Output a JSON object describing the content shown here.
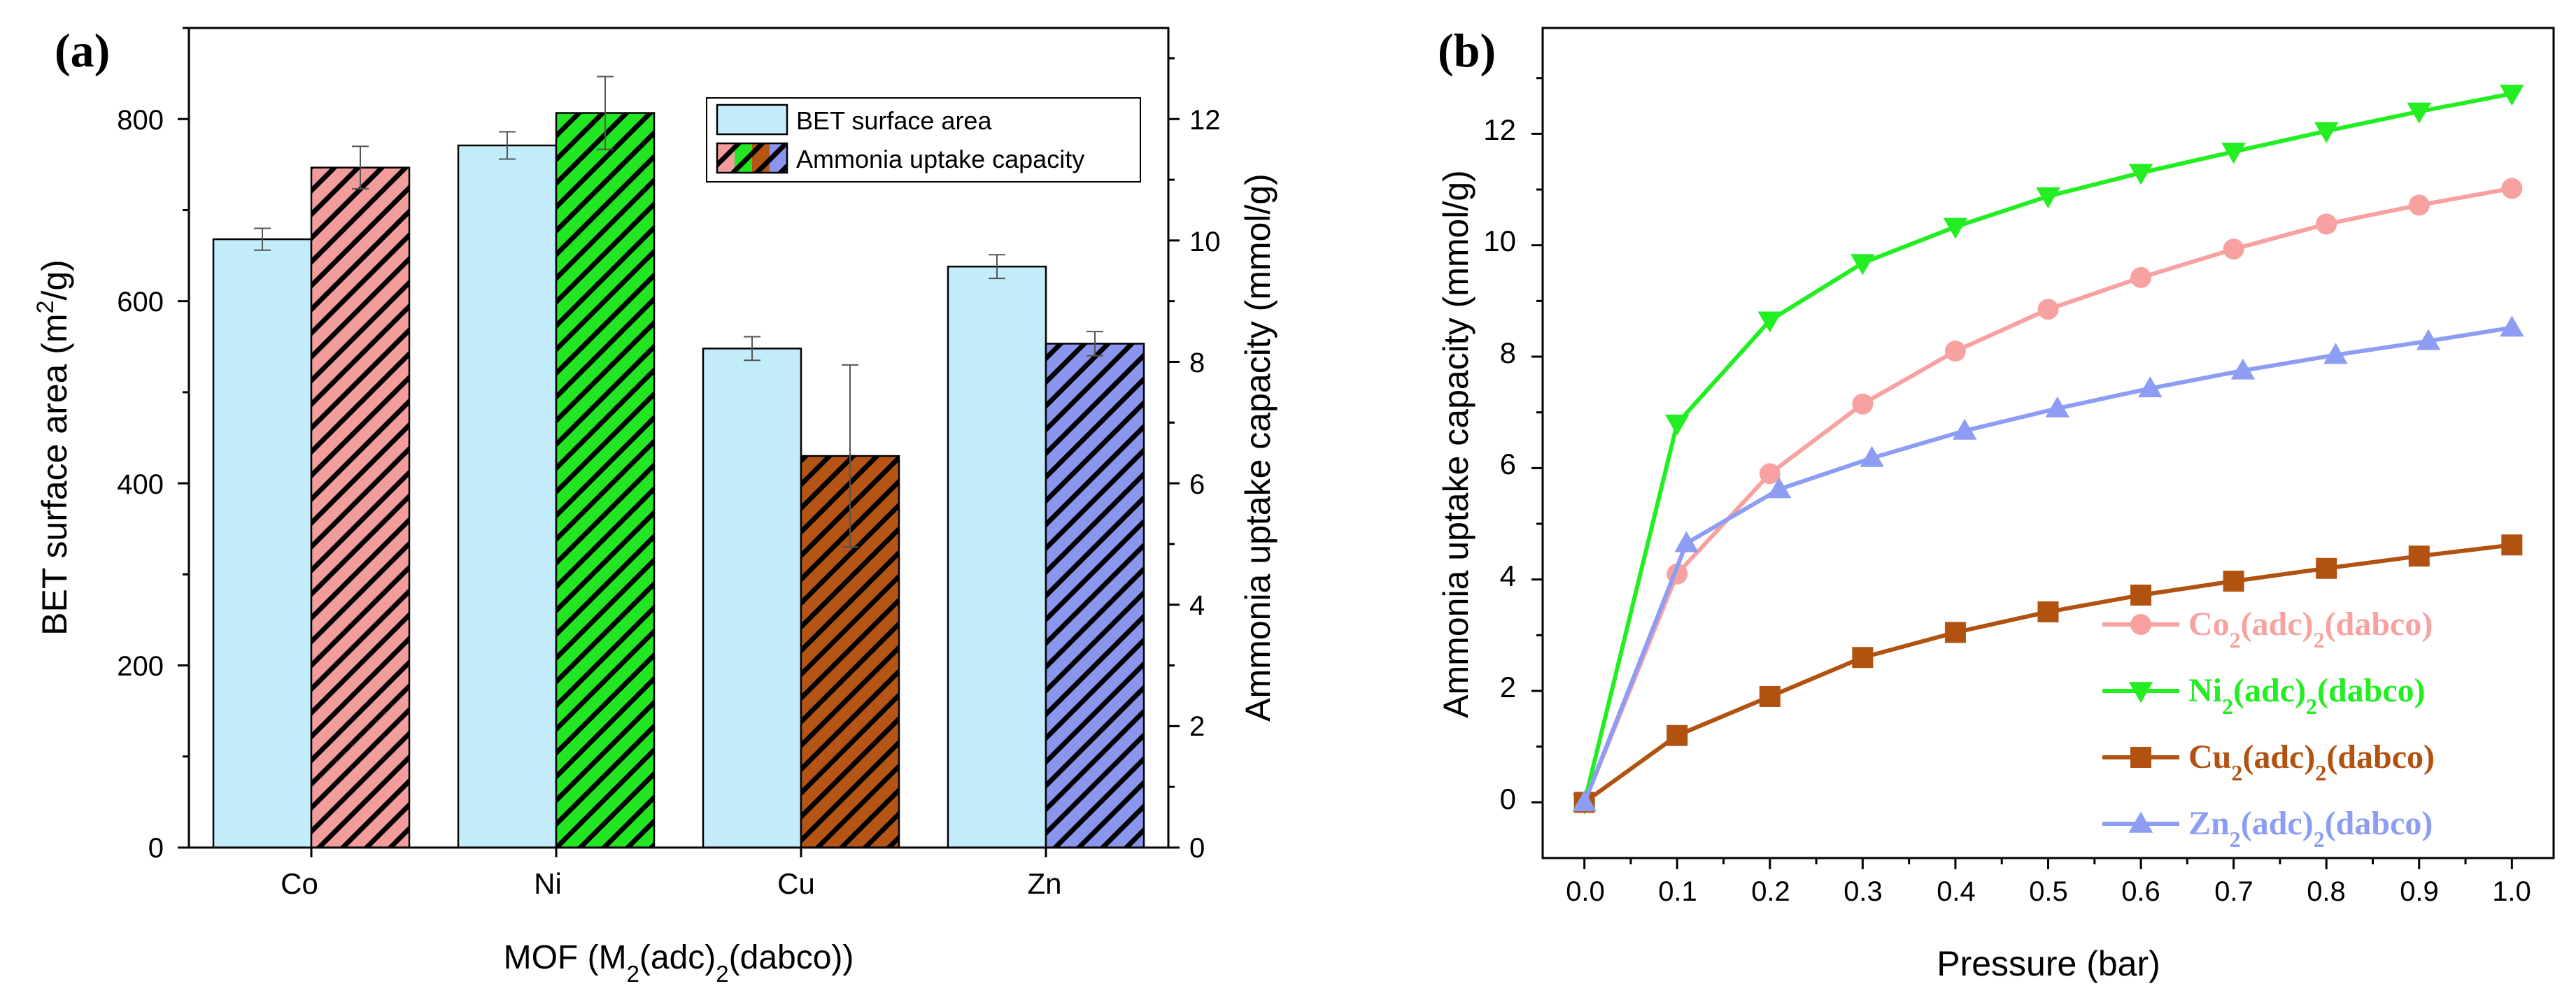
{
  "chart_data": [
    {
      "type": "bar",
      "panel_label": "(a)",
      "categories": [
        "Co",
        "Ni",
        "Cu",
        "Zn"
      ],
      "xlabel": {
        "main": "MOF (M",
        "sub1": "2",
        "mid": "(adc)",
        "sub2": "2",
        "end": "(dabco))"
      },
      "ylabel_left": {
        "main": "BET surface area (m",
        "sup": "2",
        "end": "/g)"
      },
      "ylabel_right": "Ammonia uptake capacity (mmol/g)",
      "ylim_left": [
        0,
        900
      ],
      "ylim_right": [
        0,
        13.5
      ],
      "yticks_left": [
        "0",
        "200",
        "400",
        "600",
        "800"
      ],
      "yticks_right": [
        "0",
        "2",
        "4",
        "6",
        "8",
        "10",
        "12"
      ],
      "series": [
        {
          "name": "BET surface area",
          "axis": "left",
          "color": "#c3ecfa",
          "values": [
            668,
            771,
            548,
            638
          ],
          "errors": [
            12,
            15,
            13,
            13
          ]
        },
        {
          "name": "Ammonia uptake capacity",
          "axis": "right",
          "hatched": true,
          "colors": [
            "#f29c9c",
            "#22e622",
            "#b45516",
            "#8a95ee"
          ],
          "values": [
            11.2,
            12.1,
            6.45,
            8.3
          ],
          "errors": [
            0.35,
            0.6,
            1.5,
            0.2
          ]
        }
      ],
      "legend": {
        "position": "top-right",
        "entries": [
          "BET surface area",
          "Ammonia uptake capacity"
        ]
      }
    },
    {
      "type": "line",
      "panel_label": "(b)",
      "x": [
        0.0,
        0.1,
        0.2,
        0.3,
        0.4,
        0.5,
        0.6,
        0.7,
        0.8,
        0.9,
        1.0
      ],
      "xticks": [
        "0.0",
        "0.1",
        "0.2",
        "0.3",
        "0.4",
        "0.5",
        "0.6",
        "0.7",
        "0.8",
        "0.9",
        "1.0"
      ],
      "yticks": [
        "0",
        "2",
        "4",
        "6",
        "8",
        "10",
        "12"
      ],
      "xlim": [
        -0.045,
        1.045
      ],
      "ylim": [
        -1.0,
        13.9
      ],
      "xlabel": "Pressure (bar)",
      "ylabel": "Ammonia uptake capacity (mmol/g)",
      "series": [
        {
          "metal": "Co",
          "marker": "circle",
          "color": "#f8a1a1",
          "label": {
            "a": "Co",
            "b": "2",
            "c": "(adc)",
            "d": "2",
            "e": "(dabco)"
          },
          "points": [
            [
              0.0,
              0.0
            ],
            [
              0.1,
              4.1
            ],
            [
              0.2,
              5.9
            ],
            [
              0.3,
              7.15
            ],
            [
              0.4,
              8.1
            ],
            [
              0.5,
              8.85
            ],
            [
              0.6,
              9.42
            ],
            [
              0.7,
              9.93
            ],
            [
              0.8,
              10.38
            ],
            [
              0.9,
              10.72
            ],
            [
              1.0,
              11.02
            ]
          ]
        },
        {
          "metal": "Ni",
          "marker": "triangle-down",
          "color": "#22ee22",
          "label": {
            "a": "Ni",
            "b": "2",
            "c": "(adc)",
            "d": "2",
            "e": "(dabco)"
          },
          "points": [
            [
              0.0,
              0.0
            ],
            [
              0.1,
              6.8
            ],
            [
              0.2,
              8.65
            ],
            [
              0.3,
              9.68
            ],
            [
              0.4,
              10.33
            ],
            [
              0.5,
              10.88
            ],
            [
              0.6,
              11.3
            ],
            [
              0.7,
              11.68
            ],
            [
              0.8,
              12.05
            ],
            [
              0.9,
              12.4
            ],
            [
              1.0,
              12.72
            ]
          ]
        },
        {
          "metal": "Cu",
          "marker": "square",
          "color": "#b15210",
          "label": {
            "a": "Cu",
            "b": "2",
            "c": "(adc)",
            "d": "2",
            "e": "(dabco)"
          },
          "points": [
            [
              0.0,
              0.0
            ],
            [
              0.1,
              1.2
            ],
            [
              0.2,
              1.9
            ],
            [
              0.3,
              2.6
            ],
            [
              0.4,
              3.05
            ],
            [
              0.5,
              3.42
            ],
            [
              0.6,
              3.72
            ],
            [
              0.7,
              3.97
            ],
            [
              0.8,
              4.2
            ],
            [
              0.9,
              4.42
            ],
            [
              1.0,
              4.62
            ]
          ]
        },
        {
          "metal": "Zn",
          "marker": "triangle-up",
          "color": "#8d9df3",
          "label": {
            "a": "Zn",
            "b": "2",
            "c": "(adc)",
            "d": "2",
            "e": "(dabco)"
          },
          "points": [
            [
              0.0,
              0.0
            ],
            [
              0.11,
              4.65
            ],
            [
              0.21,
              5.62
            ],
            [
              0.31,
              6.18
            ],
            [
              0.41,
              6.67
            ],
            [
              0.51,
              7.07
            ],
            [
              0.61,
              7.43
            ],
            [
              0.71,
              7.75
            ],
            [
              0.81,
              8.03
            ],
            [
              0.91,
              8.28
            ],
            [
              1.0,
              8.52
            ]
          ]
        }
      ],
      "legend": {
        "position": "bottom-right"
      }
    }
  ]
}
